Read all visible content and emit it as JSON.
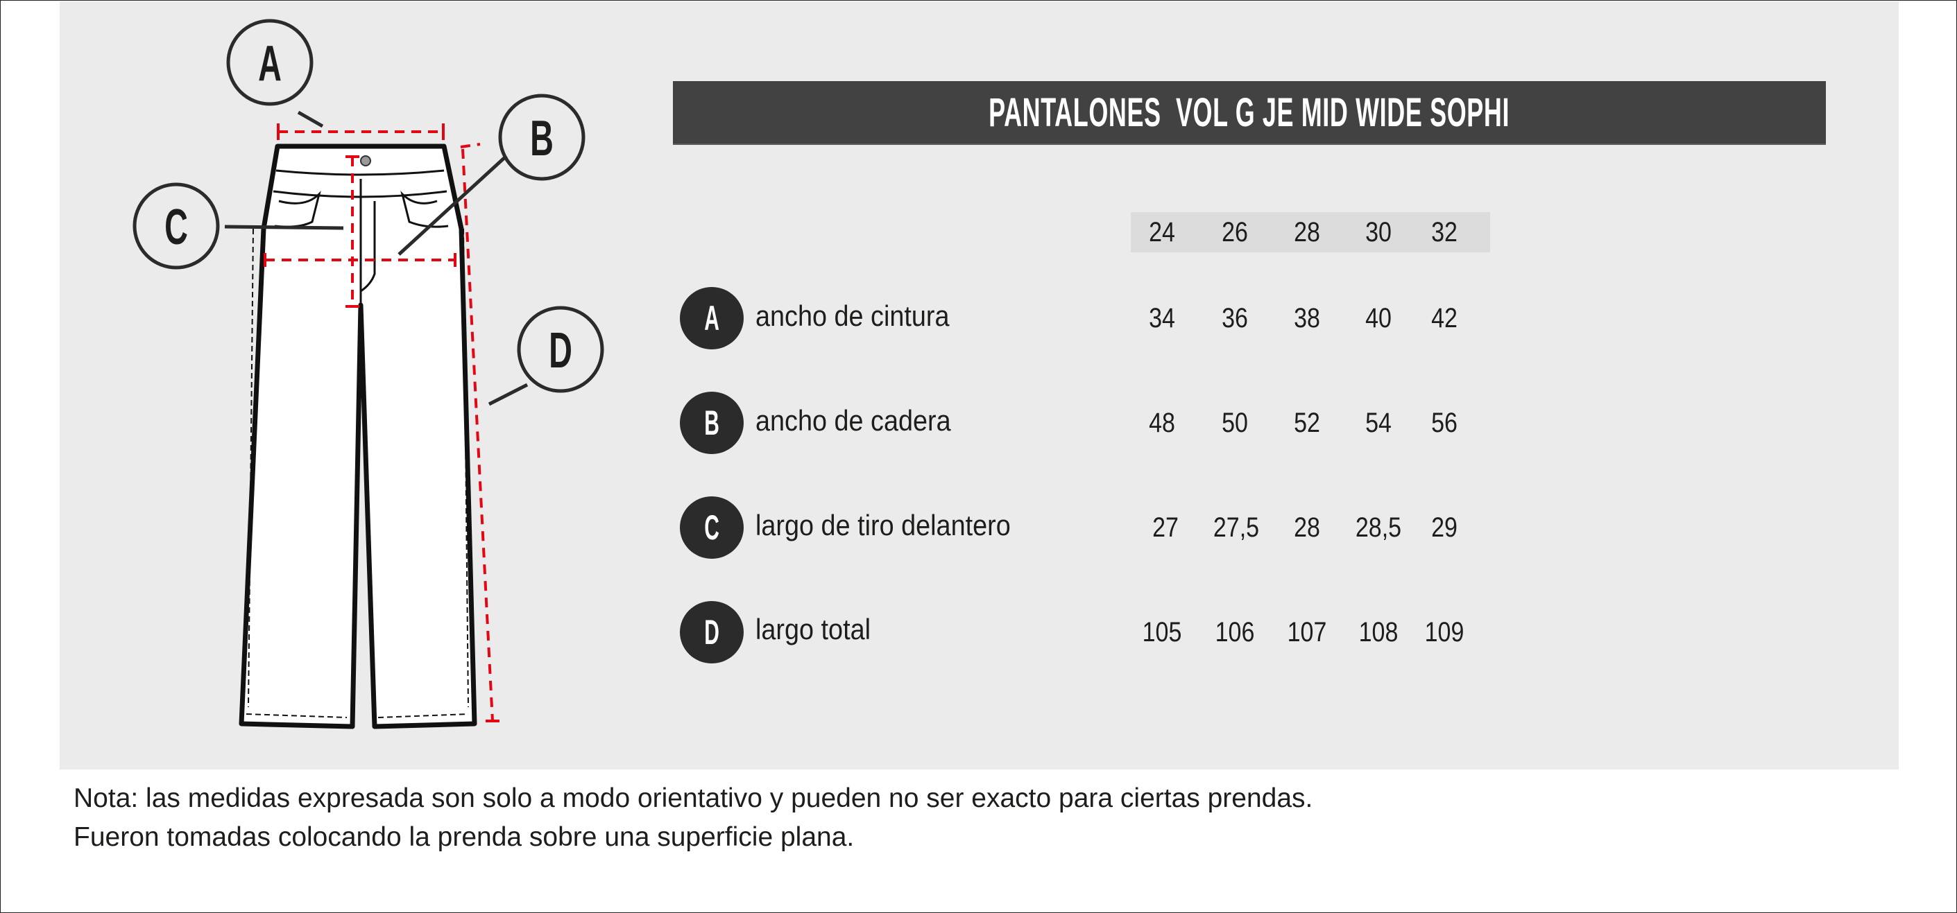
{
  "title": "PANTALONES  VOL G JE MID WIDE SOPHI",
  "sizes": [
    "24",
    "26",
    "28",
    "30",
    "32"
  ],
  "rows": [
    {
      "letter": "A",
      "label": "ancho de cintura",
      "values": [
        "34",
        "36",
        "38",
        "40",
        "42"
      ]
    },
    {
      "letter": "B",
      "label": "ancho de cadera",
      "values": [
        "48",
        "50",
        "52",
        "54",
        "56"
      ]
    },
    {
      "letter": "C",
      "label": "largo de tiro delantero",
      "values": [
        "27",
        "27,5",
        "28",
        "28,5",
        "29"
      ]
    },
    {
      "letter": "D",
      "label": "largo total",
      "values": [
        "105",
        "106",
        "107",
        "108",
        "109"
      ]
    }
  ],
  "diagram": {
    "callouts": [
      "A",
      "B",
      "C",
      "D"
    ]
  },
  "notes": [
    "Nota: las medidas expresada son solo a modo orientativo y pueden no ser exacto para ciertas prendas.",
    "Fueron tomadas colocando la prenda sobre una superficie plana."
  ],
  "colors": {
    "panel": "#ebebeb",
    "title_bar": "#424242",
    "measure_line": "#e30613",
    "badge": "#2b2b2b"
  }
}
